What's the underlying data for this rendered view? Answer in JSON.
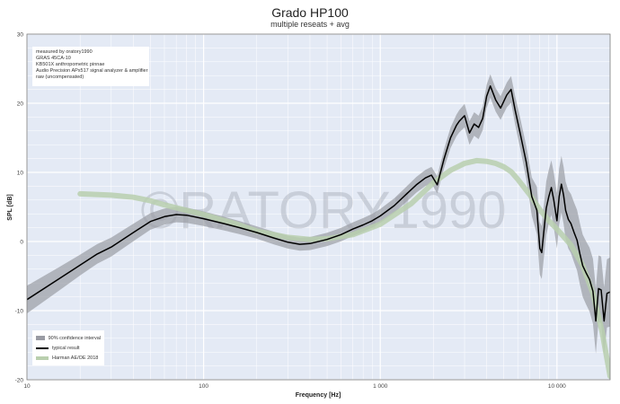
{
  "chart_data": {
    "type": "line",
    "title": "Grado HP100",
    "subtitle": "multiple reseats + avg",
    "xlabel": "Frequency [Hz]",
    "ylabel": "SPL [dB]",
    "xscale": "log",
    "xlim": [
      10,
      20000
    ],
    "ylim": [
      -20,
      30
    ],
    "yticks": [
      30,
      20,
      10,
      0,
      -10,
      -20
    ],
    "xticks": [
      {
        "value": 10,
        "label": "10"
      },
      {
        "value": 100,
        "label": "100"
      },
      {
        "value": 1000,
        "label": "1 000"
      },
      {
        "value": 10000,
        "label": "10 000"
      }
    ],
    "watermark": "©RATORY1990",
    "colors": {
      "measured": "#000000",
      "band": "#9a9ca4",
      "target": "#b9cfae",
      "plot_bg": "#e4eaf5"
    },
    "info_lines": [
      "measured by oratory1990",
      "GRAS 45CA-10",
      "KB501X anthropometric pinnae",
      "Audio Precision APx517 signal analyzer & amplifier",
      "raw (uncompensated)"
    ],
    "legend": [
      {
        "name": "90% confidence interval",
        "kind": "band"
      },
      {
        "name": "typical result",
        "kind": "measured"
      },
      {
        "name": "Harman AE/OE 2018",
        "kind": "target"
      }
    ],
    "series": [
      {
        "name": "typical result",
        "x": [
          10,
          15,
          20,
          25,
          30,
          40,
          50,
          60,
          70,
          80,
          100,
          130,
          160,
          200,
          250,
          300,
          350,
          400,
          500,
          600,
          700,
          800,
          900,
          1000,
          1200,
          1400,
          1600,
          1800,
          1950,
          2100,
          2300,
          2500,
          2700,
          2800,
          3000,
          3200,
          3400,
          3600,
          3800,
          4000,
          4200,
          4500,
          4800,
          5200,
          5500,
          5800,
          6200,
          6700,
          7200,
          7700,
          8000,
          8200,
          8400,
          8700,
          9000,
          9300,
          9600,
          10000,
          10300,
          10600,
          10900,
          11200,
          11600,
          12000,
          12500,
          13000,
          13500,
          14000,
          14600,
          15300,
          16000,
          16600,
          17200,
          17800,
          18500,
          19200,
          20000
        ],
        "values": [
          -8.4,
          -5.5,
          -3.4,
          -1.8,
          -0.8,
          1.3,
          2.9,
          3.6,
          3.9,
          3.8,
          3.3,
          2.6,
          2.0,
          1.3,
          0.5,
          -0.1,
          -0.4,
          -0.3,
          0.3,
          1.0,
          1.8,
          2.4,
          3.0,
          3.7,
          5.2,
          6.8,
          8.2,
          9.2,
          9.6,
          8.2,
          12.0,
          15.0,
          16.8,
          17.4,
          18.2,
          15.7,
          17.0,
          16.5,
          17.8,
          21.0,
          22.5,
          20.5,
          19.3,
          21.2,
          22.0,
          19.0,
          15.6,
          11.5,
          6.5,
          4.5,
          -1.0,
          -1.6,
          1.0,
          4.8,
          6.5,
          7.8,
          6.0,
          3.0,
          6.5,
          8.3,
          6.7,
          4.5,
          3.2,
          2.6,
          1.3,
          0.2,
          -1.8,
          -3.5,
          -4.5,
          -5.5,
          -7.2,
          -11.5,
          -6.8,
          -7.0,
          -11.5,
          -7.5,
          -7.3
        ]
      },
      {
        "name": "Harman AE/OE 2018",
        "x": [
          20,
          30,
          40,
          50,
          60,
          80,
          100,
          150,
          200,
          300,
          400,
          500,
          700,
          1000,
          1500,
          2000,
          2500,
          3000,
          3500,
          4000,
          4500,
          5000,
          5500,
          6000,
          7000,
          8000,
          9000,
          10000,
          12000,
          14000,
          16000,
          18000,
          20000
        ],
        "values": [
          6.9,
          6.7,
          6.4,
          5.9,
          5.3,
          4.5,
          3.9,
          2.6,
          1.5,
          0.6,
          0.3,
          0.4,
          1.0,
          2.5,
          5.5,
          8.5,
          10.3,
          11.3,
          11.7,
          11.6,
          11.3,
          10.8,
          10.1,
          9.0,
          6.8,
          4.6,
          3.0,
          1.8,
          -0.5,
          -3.5,
          -7.5,
          -13.0,
          -19.5
        ]
      }
    ],
    "confidence_halfwidth": {
      "x": [
        10,
        20,
        50,
        200,
        1000,
        2000,
        3000,
        5000,
        7000,
        8000,
        10000,
        14000,
        20000
      ],
      "values": [
        2.0,
        1.5,
        1.2,
        0.9,
        1.0,
        1.2,
        1.7,
        1.7,
        2.5,
        3.8,
        4.0,
        4.5,
        5.0
      ]
    }
  }
}
